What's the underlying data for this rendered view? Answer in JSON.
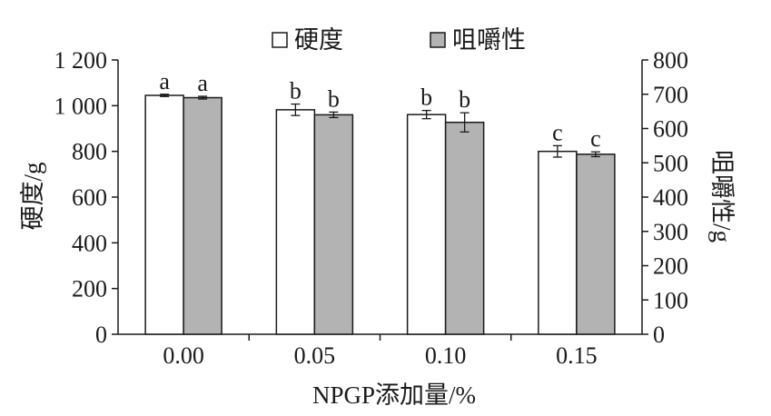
{
  "chart_data": {
    "type": "bar",
    "categories": [
      "0.00",
      "0.05",
      "0.10",
      "0.15"
    ],
    "xlabel": "NPGP添加量/%",
    "ylabel_left": "硬度/g",
    "ylabel_right": "咀嚼性/g",
    "ylim_left": [
      0,
      1200
    ],
    "ylim_right": [
      0,
      800
    ],
    "yticks_left": [
      "0",
      "200",
      "400",
      "600",
      "800",
      "1 000",
      "1 200"
    ],
    "yticks_right": [
      "0",
      "100",
      "200",
      "300",
      "400",
      "500",
      "600",
      "700",
      "800"
    ],
    "legend_position": "top-center",
    "series": [
      {
        "name": "硬度",
        "axis": "left",
        "color": "#ffffff",
        "values": [
          1045,
          982,
          961,
          800
        ],
        "errors": [
          5,
          25,
          18,
          25
        ],
        "labels": [
          "a",
          "b",
          "b",
          "c"
        ]
      },
      {
        "name": "咀嚼性",
        "axis": "right",
        "color": "#b3b3b3",
        "values": [
          690,
          640,
          618,
          525
        ],
        "errors": [
          4,
          8,
          28,
          7
        ],
        "labels": [
          "a",
          "b",
          "b",
          "c"
        ]
      }
    ]
  }
}
